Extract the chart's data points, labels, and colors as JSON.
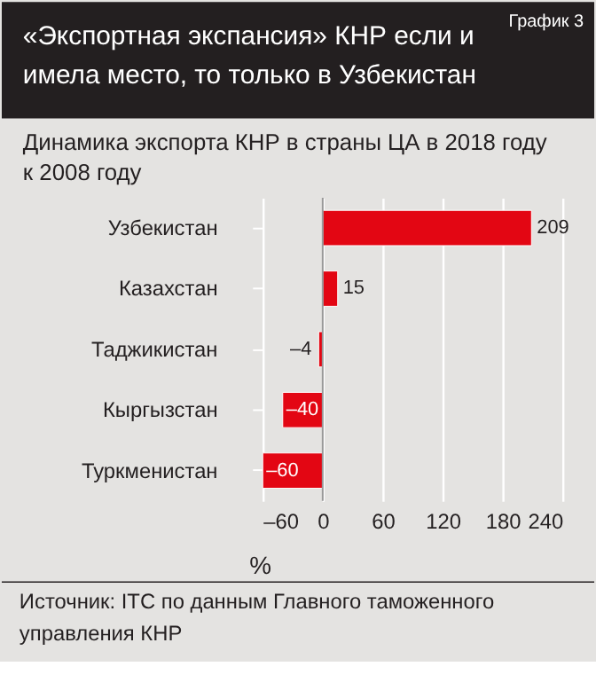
{
  "chart_data": {
    "type": "bar",
    "orientation": "horizontal",
    "title": "«Экспортная экспансия» КНР если и имела место, то только в Узбекистан",
    "subtitle": "Динамика экспорта КНР в страны ЦА в 2018 году к 2008 году",
    "annotations": [
      "График 3",
      "Источник: ITC по данным Главного таможенного управления КНР"
    ],
    "xlabel": "%",
    "categories": [
      "Узбекистан",
      "Казахстан",
      "Таджикистан",
      "Кыргызстан",
      "Туркменистан"
    ],
    "values": [
      209,
      15,
      -4,
      -40,
      -60
    ],
    "value_labels": [
      "209",
      "15",
      "–4",
      "–40",
      "–60"
    ],
    "color": "#e30613",
    "xlim": [
      -60,
      240
    ],
    "xticks": [
      {
        "value": -60,
        "label": "–60"
      },
      0,
      60,
      120,
      180,
      240
    ],
    "grid": "x",
    "ref_lines": [
      {
        "axis": "x",
        "value": 0,
        "color": "#999999"
      }
    ]
  }
}
